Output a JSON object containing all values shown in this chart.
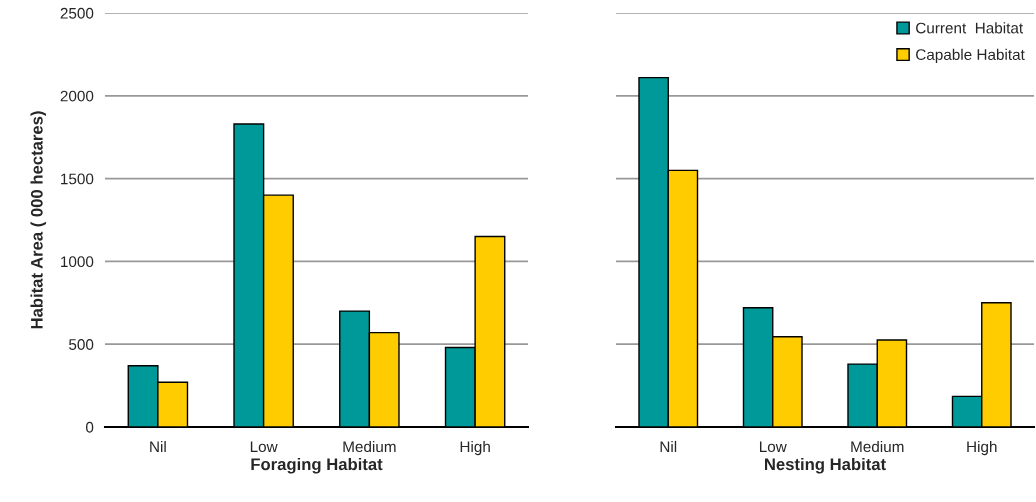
{
  "chart_data": [
    {
      "type": "bar",
      "xlabel": "Foraging Habitat",
      "ylabel": "Habitat Area ( 000 hectares)",
      "categories": [
        "Nil",
        "Low",
        "Medium",
        "High"
      ],
      "series": [
        {
          "color": "#009999",
          "values": [
            370,
            1830,
            700,
            480
          ]
        },
        {
          "color": "#ffcc00",
          "values": [
            270,
            1400,
            570,
            1150
          ]
        }
      ],
      "ylim": [
        0,
        2500
      ],
      "yticks": [
        0,
        500,
        1000,
        1500,
        2000,
        2500
      ],
      "grid": "y"
    },
    {
      "type": "bar",
      "xlabel": "Nesting Habitat",
      "categories": [
        "Nil",
        "Low",
        "Medium",
        "High"
      ],
      "series": [
        {
          "name": "Current  Habitat",
          "color": "#009999",
          "values": [
            2110,
            720,
            380,
            185
          ]
        },
        {
          "name": "Capable Habitat",
          "color": "#ffcc00",
          "values": [
            1550,
            545,
            525,
            750
          ]
        }
      ],
      "ylim": [
        0,
        2500
      ],
      "yticks": [
        0,
        500,
        1000,
        1500,
        2000,
        2500
      ],
      "grid": "y",
      "legend": "top right",
      "tick_labels": "x"
    }
  ]
}
